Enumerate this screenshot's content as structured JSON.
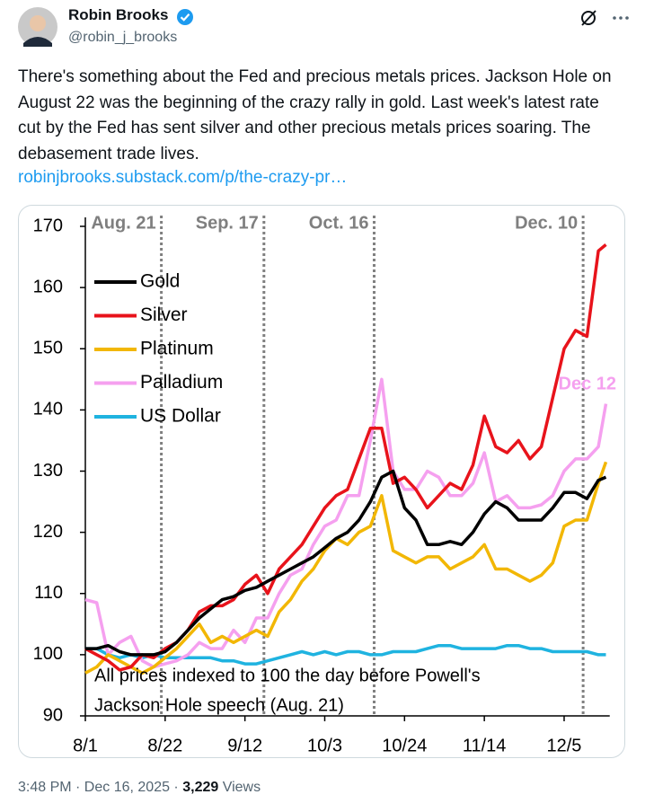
{
  "tweet": {
    "author": "Robin Brooks",
    "handle": "@robin_j_brooks",
    "text": "There's something about the Fed and precious metals prices. Jackson Hole on August 22 was the beginning of the crazy rally in gold. Last week's latest rate cut by the Fed has sent silver and other precious metals prices soaring. The debasement trade lives.",
    "link": "robinjbrooks.substack.com/p/the-crazy-pr…",
    "timestamp": "3:48 PM · Dec 16, 2025 ·",
    "views": "3,229",
    "views_label": "Views"
  },
  "chart_data": {
    "type": "line",
    "x": [
      "8/1",
      "8/4",
      "8/7",
      "8/10",
      "8/13",
      "8/16",
      "8/19",
      "8/22",
      "8/25",
      "8/28",
      "8/31",
      "9/3",
      "9/6",
      "9/9",
      "9/12",
      "9/15",
      "9/18",
      "9/21",
      "9/24",
      "9/27",
      "9/30",
      "10/3",
      "10/6",
      "10/9",
      "10/12",
      "10/15",
      "10/18",
      "10/21",
      "10/24",
      "10/27",
      "10/30",
      "11/2",
      "11/5",
      "11/8",
      "11/11",
      "11/14",
      "11/17",
      "11/20",
      "11/23",
      "11/26",
      "11/29",
      "12/2",
      "12/5",
      "12/8",
      "12/11",
      "12/14",
      "12/16"
    ],
    "series": [
      {
        "name": "Gold",
        "color": "#000000",
        "values": [
          101,
          101,
          101.5,
          100.5,
          100,
          100,
          100,
          100.5,
          102,
          104,
          106,
          107.5,
          109,
          109.5,
          110.5,
          111,
          112,
          113,
          114,
          115,
          116,
          117.5,
          119,
          120,
          122,
          125,
          129,
          130,
          124,
          122,
          118,
          118,
          118.5,
          118,
          120,
          123,
          125,
          124,
          122,
          122,
          122,
          124,
          126.5,
          126.5,
          125.5,
          128.5,
          129
        ]
      },
      {
        "name": "Silver",
        "color": "#e8131b",
        "values": [
          101,
          100,
          99,
          97.5,
          98,
          100,
          99.5,
          101,
          102,
          104,
          107,
          108,
          108,
          109,
          111.5,
          113,
          110,
          114,
          116,
          118,
          121,
          124,
          126,
          127,
          132,
          137,
          137,
          128,
          129,
          127,
          124,
          126,
          128,
          127,
          131,
          139,
          134,
          133,
          135,
          132,
          134,
          142,
          150,
          153,
          152,
          166,
          167
        ]
      },
      {
        "name": "Platinum",
        "color": "#f2b705",
        "values": [
          97,
          98,
          100,
          99,
          98,
          97,
          98,
          99.5,
          101,
          103,
          105,
          102,
          103,
          102,
          103,
          104,
          103,
          107,
          109,
          112,
          114,
          117,
          119,
          118,
          120,
          121,
          126,
          117,
          116,
          115,
          116,
          116,
          114,
          115,
          116,
          118,
          114,
          114,
          113,
          112,
          113,
          115,
          121,
          122,
          122,
          128,
          131.5
        ]
      },
      {
        "name": "Palladium",
        "color": "#f5a0ef",
        "values": [
          109,
          108.5,
          100,
          102,
          103,
          99,
          98,
          98.5,
          99,
          100,
          102,
          101,
          101,
          104,
          102,
          106,
          106,
          110,
          113,
          114,
          118,
          121,
          122,
          126,
          126,
          135,
          145,
          130,
          127,
          127,
          130,
          129,
          126,
          126,
          128,
          133,
          125,
          126,
          124,
          124,
          124.5,
          126,
          130,
          132,
          132,
          134,
          141
        ]
      },
      {
        "name": "US Dollar",
        "color": "#1fb3e0",
        "values": [
          101,
          101,
          100,
          99.5,
          100,
          99.5,
          100,
          99.5,
          99.5,
          99.5,
          99.5,
          99.5,
          99,
          99,
          98.5,
          98.5,
          99,
          99.5,
          100,
          100.5,
          100,
          100.5,
          100,
          100.5,
          100.5,
          100,
          100,
          100.5,
          100.5,
          100.5,
          101,
          101.5,
          101.5,
          101,
          101,
          101,
          101,
          101.5,
          101.5,
          101,
          101,
          100.5,
          100.5,
          100.5,
          100.5,
          100,
          100
        ]
      }
    ],
    "xlim": [
      "8/1",
      "12/17"
    ],
    "xticks": [
      "8/1",
      "8/22",
      "9/12",
      "10/3",
      "10/24",
      "11/14",
      "12/5"
    ],
    "ylim": [
      90,
      170
    ],
    "yticks": [
      90,
      100,
      110,
      120,
      130,
      140,
      150,
      160,
      170
    ],
    "legend": "upper left",
    "vlines": [
      {
        "x": "8/21",
        "label": "Aug. 21"
      },
      {
        "x": "9/17",
        "label": "Sep. 17"
      },
      {
        "x": "10/16",
        "label": "Oct. 16"
      },
      {
        "x": "12/10",
        "label": "Dec. 10"
      }
    ],
    "series_note": {
      "text": "Dec 12",
      "color": "#f5a0ef"
    },
    "note": [
      "All prices indexed to 100 the day before Powell's",
      "Jackson Hole speech (Aug. 21)"
    ]
  }
}
